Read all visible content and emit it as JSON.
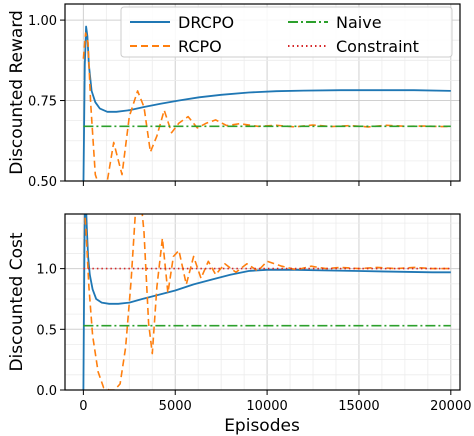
{
  "chart_data": [
    {
      "type": "line",
      "ylabel": "Discounted Reward",
      "xlim": [
        -1000,
        20500
      ],
      "ylim": [
        0.5,
        1.05
      ],
      "yticks": [
        0.5,
        0.75,
        1.0
      ],
      "ytick_labels": [
        "0.50",
        "0.75",
        "1.00"
      ],
      "xticks": [
        0,
        5000,
        10000,
        15000,
        20000
      ],
      "grid": true,
      "legend_placement": "top",
      "series": [
        {
          "name": "DRCPO",
          "color": "#1f77b4",
          "style": "solid",
          "x": [
            0,
            80,
            150,
            220,
            300,
            450,
            650,
            900,
            1300,
            1800,
            2500,
            3300,
            4200,
            5200,
            6300,
            7500,
            9000,
            10500,
            12000,
            14000,
            16000,
            18000,
            20000
          ],
          "y": [
            0.48,
            0.86,
            0.98,
            0.95,
            0.86,
            0.78,
            0.745,
            0.725,
            0.715,
            0.715,
            0.72,
            0.73,
            0.74,
            0.75,
            0.76,
            0.768,
            0.775,
            0.779,
            0.781,
            0.782,
            0.782,
            0.782,
            0.78
          ]
        },
        {
          "name": "RCPO",
          "color": "#ff7f0e",
          "style": "dashed",
          "x": [
            0,
            120,
            250,
            400,
            650,
            950,
            1300,
            1650,
            2100,
            2500,
            2950,
            3300,
            3650,
            4000,
            4400,
            4800,
            5200,
            5700,
            6200,
            6700,
            7200,
            7800,
            8500,
            9500,
            10500,
            11500,
            12500,
            13500,
            14500,
            15500,
            16500,
            17500,
            18500,
            19500,
            20000
          ],
          "y": [
            0.88,
            0.96,
            0.93,
            0.74,
            0.52,
            0.47,
            0.5,
            0.62,
            0.52,
            0.7,
            0.78,
            0.73,
            0.59,
            0.64,
            0.72,
            0.65,
            0.68,
            0.7,
            0.665,
            0.68,
            0.69,
            0.672,
            0.678,
            0.67,
            0.673,
            0.668,
            0.674,
            0.669,
            0.672,
            0.668,
            0.673,
            0.67,
            0.671,
            0.669,
            0.67
          ]
        },
        {
          "name": "Naive",
          "color": "#2ca02c",
          "style": "dashdot",
          "x": [
            0,
            20000
          ],
          "y": [
            0.67,
            0.67
          ]
        }
      ]
    },
    {
      "type": "line",
      "xlabel": "Episodes",
      "ylabel": "Discounted Cost",
      "xlim": [
        -1000,
        20500
      ],
      "ylim": [
        0.0,
        1.45
      ],
      "yticks": [
        0.0,
        0.5,
        1.0
      ],
      "ytick_labels": [
        "0.0",
        "0.5",
        "1.0"
      ],
      "xticks": [
        0,
        5000,
        10000,
        15000,
        20000
      ],
      "xtick_labels": [
        "0",
        "5000",
        "10000",
        "15000",
        "20000"
      ],
      "grid": true,
      "series": [
        {
          "name": "DRCPO",
          "color": "#1f77b4",
          "style": "solid",
          "x": [
            0,
            30,
            60,
            100,
            150,
            200,
            260,
            350,
            500,
            700,
            1000,
            1400,
            1900,
            2500,
            3200,
            4000,
            5000,
            6000,
            7000,
            8000,
            9000,
            10000,
            11500,
            13000,
            15000,
            17000,
            19000,
            20000
          ],
          "y": [
            0.0,
            0.6,
            1.2,
            1.6,
            1.5,
            1.3,
            1.1,
            0.95,
            0.83,
            0.75,
            0.72,
            0.71,
            0.71,
            0.72,
            0.75,
            0.78,
            0.82,
            0.87,
            0.91,
            0.95,
            0.98,
            0.99,
            0.99,
            0.985,
            0.98,
            0.975,
            0.97,
            0.97
          ]
        },
        {
          "name": "RCPO",
          "color": "#ff7f0e",
          "style": "dashed",
          "x": [
            0,
            150,
            300,
            500,
            800,
            1100,
            1400,
            1700,
            2000,
            2300,
            2600,
            2850,
            3050,
            3300,
            3550,
            3750,
            4000,
            4300,
            4600,
            4900,
            5200,
            5600,
            6000,
            6400,
            6800,
            7200,
            7700,
            8300,
            8900,
            9500,
            10000,
            10800,
            11600,
            12400,
            13200,
            14000,
            15000,
            16000,
            17000,
            18000,
            19000,
            20000
          ],
          "y": [
            1.6,
            1.3,
            0.85,
            0.45,
            0.15,
            0.02,
            0.0,
            0.0,
            0.05,
            0.35,
            0.9,
            1.5,
            1.7,
            1.3,
            0.55,
            0.3,
            0.85,
            1.25,
            0.8,
            1.1,
            1.15,
            0.87,
            1.1,
            0.92,
            1.06,
            0.95,
            1.04,
            0.97,
            1.04,
            0.98,
            1.06,
            1.02,
            0.99,
            1.02,
            1.0,
            1.01,
            1.0,
            1.01,
            1.0,
            1.01,
            1.0,
            1.0
          ]
        },
        {
          "name": "Naive",
          "color": "#2ca02c",
          "style": "dashdot",
          "x": [
            0,
            20000
          ],
          "y": [
            0.53,
            0.53
          ]
        },
        {
          "name": "Constraint",
          "color": "#d62728",
          "style": "dotted",
          "x": [
            0,
            20000
          ],
          "y": [
            1.0,
            1.0
          ]
        }
      ]
    }
  ],
  "legend": {
    "entries": [
      {
        "label": "DRCPO",
        "color": "#1f77b4",
        "style": "solid"
      },
      {
        "label": "RCPO",
        "color": "#ff7f0e",
        "style": "dashed"
      },
      {
        "label": "Naive",
        "color": "#2ca02c",
        "style": "dashdot"
      },
      {
        "label": "Constraint",
        "color": "#d62728",
        "style": "dotted"
      }
    ]
  }
}
